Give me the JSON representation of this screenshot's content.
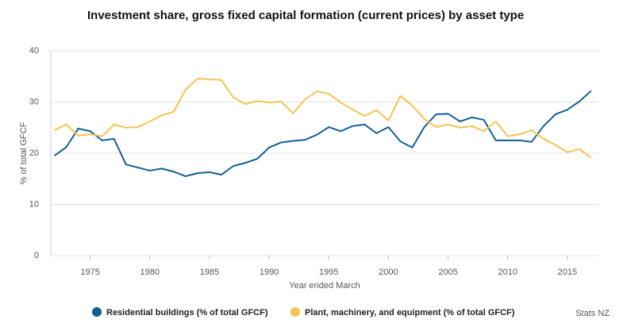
{
  "chart_data": {
    "type": "line",
    "title": "Investment share, gross fixed capital formation (current prices) by asset type",
    "x_label": "Year ended March",
    "y_label": "% of total GFCF",
    "source": "Stats NZ",
    "x": [
      1972,
      1973,
      1974,
      1975,
      1976,
      1977,
      1978,
      1979,
      1980,
      1981,
      1982,
      1983,
      1984,
      1985,
      1986,
      1987,
      1988,
      1989,
      1990,
      1991,
      1992,
      1993,
      1994,
      1995,
      1996,
      1997,
      1998,
      1999,
      2000,
      2001,
      2002,
      2003,
      2004,
      2005,
      2006,
      2007,
      2008,
      2009,
      2010,
      2011,
      2012,
      2013,
      2014,
      2015,
      2016,
      2017
    ],
    "series": [
      {
        "name": "Residential buildings (% of total GFCF)",
        "color": "#135f92",
        "values": [
          19.5,
          21.2,
          24.8,
          24.3,
          22.5,
          22.8,
          17.8,
          17.2,
          16.6,
          17.0,
          16.4,
          15.5,
          16.1,
          16.3,
          15.8,
          17.5,
          18.1,
          18.9,
          21.1,
          22.1,
          22.4,
          22.6,
          23.6,
          25.1,
          24.3,
          25.3,
          25.6,
          23.9,
          25.1,
          22.3,
          21.1,
          25.1,
          27.6,
          27.7,
          26.2,
          27.0,
          26.5,
          22.5,
          22.5,
          22.5,
          22.2,
          25.3,
          27.6,
          28.5,
          30.1,
          32.2
        ]
      },
      {
        "name": "Plant, machinery, and equipment (% of total GFCF)",
        "color": "#f4c452",
        "values": [
          24.5,
          25.6,
          23.4,
          23.7,
          23.3,
          25.6,
          25.0,
          25.1,
          26.2,
          27.4,
          28.1,
          32.4,
          34.6,
          34.4,
          34.3,
          30.9,
          29.6,
          30.2,
          29.9,
          30.1,
          27.8,
          30.5,
          32.1,
          31.6,
          29.9,
          28.5,
          27.3,
          28.4,
          26.4,
          31.2,
          29.3,
          26.7,
          25.1,
          25.6,
          25.0,
          25.3,
          24.3,
          26.2,
          23.3,
          23.7,
          24.5,
          22.8,
          21.6,
          20.2,
          20.8,
          19.1
        ]
      }
    ],
    "xlim": [
      1971.7,
      2017.6
    ],
    "xticks": [
      1975,
      1980,
      1985,
      1990,
      1995,
      2000,
      2005,
      2010,
      2015
    ],
    "ylim": [
      0,
      40
    ],
    "yticks": [
      0,
      10,
      20,
      30,
      40
    ],
    "grid": true
  }
}
